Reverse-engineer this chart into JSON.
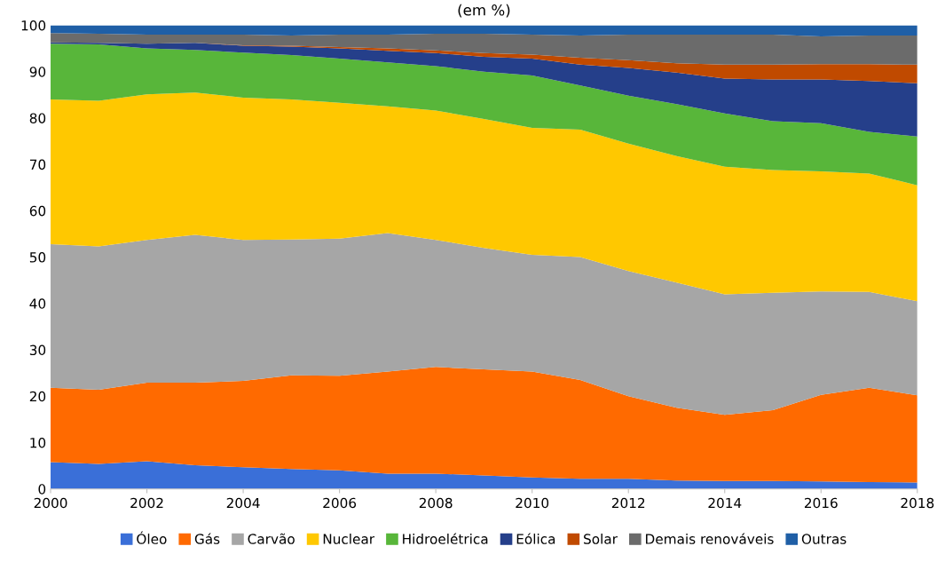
{
  "chart_data": {
    "type": "area",
    "stacked": true,
    "title": "(em %)",
    "x": [
      2000,
      2001,
      2002,
      2003,
      2004,
      2005,
      2006,
      2007,
      2008,
      2009,
      2010,
      2011,
      2012,
      2013,
      2014,
      2015,
      2016,
      2017,
      2018
    ],
    "xlim": [
      2000,
      2018
    ],
    "xticks": [
      2000,
      2002,
      2004,
      2006,
      2008,
      2010,
      2012,
      2014,
      2016,
      2018
    ],
    "ylim": [
      0,
      100
    ],
    "yticks": [
      0,
      10,
      20,
      30,
      40,
      50,
      60,
      70,
      80,
      90,
      100
    ],
    "grid": false,
    "legend": "bottom",
    "series": [
      {
        "name": "Óleo",
        "color": "#3a6fd8",
        "values": [
          5.8,
          5.4,
          6.0,
          5.1,
          4.7,
          4.3,
          4.0,
          3.3,
          3.3,
          2.9,
          2.5,
          2.2,
          2.2,
          1.8,
          1.7,
          1.7,
          1.6,
          1.5,
          1.4
        ]
      },
      {
        "name": "Gás",
        "color": "#ff6a00",
        "values": [
          16.0,
          16.0,
          16.9,
          17.8,
          18.6,
          20.2,
          20.4,
          22.0,
          23.0,
          22.9,
          22.8,
          21.3,
          17.8,
          15.7,
          14.3,
          15.3,
          18.7,
          20.3,
          18.8
        ]
      },
      {
        "name": "Carvão",
        "color": "#a6a6a6",
        "values": [
          31.0,
          30.9,
          30.8,
          31.9,
          30.4,
          29.3,
          29.6,
          29.9,
          27.4,
          26.2,
          25.2,
          26.5,
          27.0,
          27.0,
          26.0,
          25.3,
          22.3,
          20.7,
          20.3
        ]
      },
      {
        "name": "Nuclear",
        "color": "#ffc800",
        "values": [
          31.2,
          31.4,
          31.4,
          30.7,
          30.7,
          30.2,
          29.3,
          27.3,
          27.9,
          27.8,
          27.4,
          27.5,
          27.5,
          27.3,
          27.5,
          26.5,
          25.9,
          25.5,
          25.0
        ]
      },
      {
        "name": "Hidroelétrica",
        "color": "#58b63a",
        "values": [
          12.0,
          12.2,
          9.9,
          9.2,
          9.7,
          9.6,
          9.5,
          9.5,
          9.6,
          10.2,
          11.3,
          9.5,
          10.3,
          11.2,
          11.5,
          10.5,
          10.4,
          9.0,
          10.5
        ]
      },
      {
        "name": "Eólica",
        "color": "#253f8a",
        "values": [
          0.3,
          0.3,
          1.0,
          1.5,
          1.5,
          1.8,
          2.2,
          2.5,
          2.8,
          3.2,
          3.6,
          4.5,
          6.0,
          6.8,
          7.5,
          9.0,
          9.4,
          11.0,
          11.5
        ]
      },
      {
        "name": "Solar",
        "color": "#c04a00",
        "values": [
          0.0,
          0.0,
          0.0,
          0.0,
          0.1,
          0.2,
          0.3,
          0.5,
          0.6,
          0.8,
          0.9,
          1.5,
          1.7,
          2.0,
          3.0,
          3.2,
          3.3,
          3.6,
          4.0
        ]
      },
      {
        "name": "Demais renováveis",
        "color": "#6b6b6b",
        "values": [
          2.0,
          2.0,
          2.0,
          1.8,
          2.3,
          2.2,
          2.7,
          3.0,
          3.6,
          4.2,
          4.3,
          4.8,
          5.5,
          6.2,
          6.5,
          6.5,
          6.0,
          6.2,
          6.3
        ]
      },
      {
        "name": "Outras",
        "color": "#1f5fa6",
        "values": [
          1.7,
          1.8,
          2.0,
          2.0,
          2.0,
          2.2,
          2.0,
          2.0,
          1.8,
          1.8,
          2.0,
          2.2,
          2.0,
          2.0,
          2.0,
          2.0,
          2.4,
          2.2,
          2.2
        ]
      }
    ]
  }
}
